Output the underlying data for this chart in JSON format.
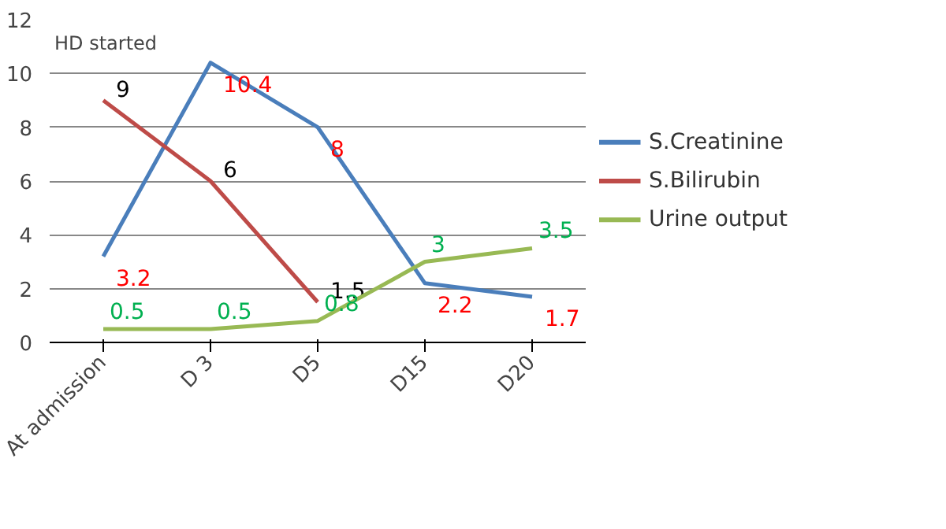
{
  "chart_data": {
    "type": "line",
    "categories": [
      "At admission",
      "D 3",
      "D5",
      "D15",
      "D20"
    ],
    "series": [
      {
        "name": "S.Creatinine",
        "color": "#4a7ebb",
        "values": [
          3.2,
          10.4,
          8,
          2.2,
          1.7
        ]
      },
      {
        "name": "S.Bilirubin",
        "color": "#be4b48",
        "values": [
          9,
          6,
          1.5,
          null,
          null
        ]
      },
      {
        "name": "Urine output",
        "color": "#98b954",
        "values": [
          0.5,
          0.5,
          0.8,
          3,
          3.5
        ]
      }
    ],
    "ylim": [
      0,
      12
    ],
    "yticks": [
      0,
      2,
      4,
      6,
      8,
      10,
      12
    ],
    "grid": "y",
    "legend": "right",
    "data_labels": true,
    "marker": "none",
    "line_style": "solid",
    "annotations": [
      "HD started"
    ]
  }
}
